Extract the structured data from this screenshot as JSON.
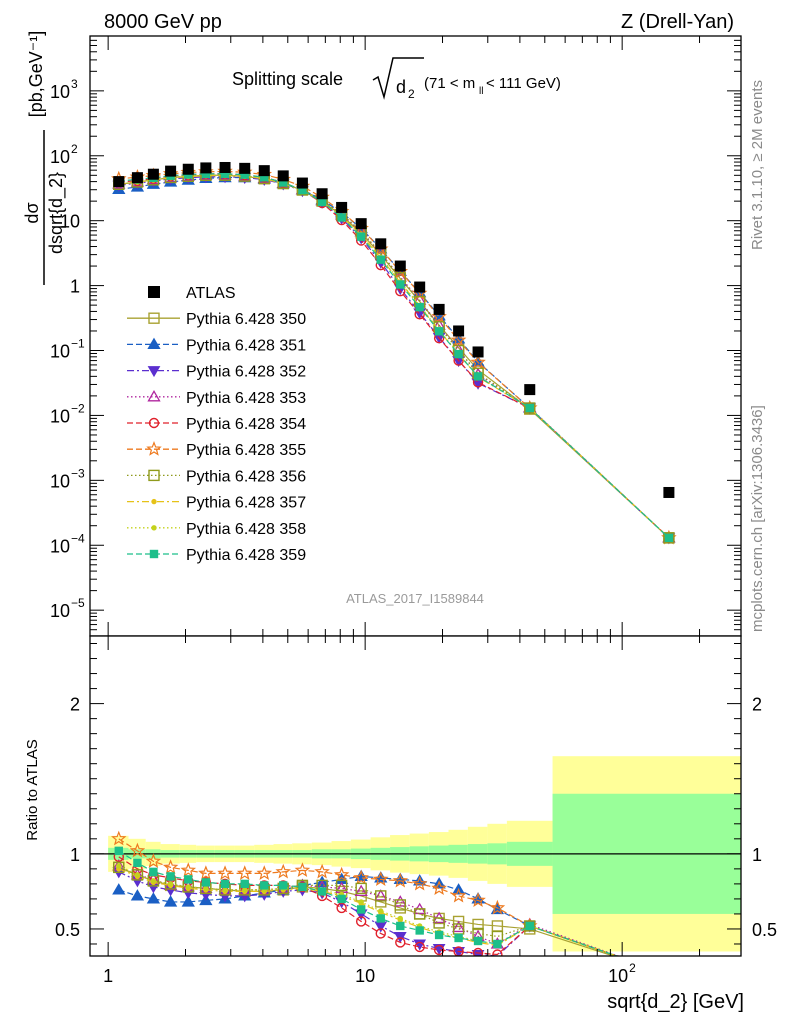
{
  "header": {
    "energy_label": "8000 GeV pp",
    "process_label": "Z (Drell-Yan)"
  },
  "side": {
    "rivet": "Rivet 3.1.10, ≥ 2M events",
    "mcplots": "mcplots.cern.ch [arXiv:1306.3436]"
  },
  "title": {
    "prefix": "Splitting scale",
    "symbol": "d",
    "sub": "2",
    "range": "(71 < m",
    "range_sub": "ll",
    "range_end": " < 111 GeV)"
  },
  "analysis_id": "ATLAS_2017_I1589844",
  "main_ylabel": {
    "num": "dσ",
    "den": "dsqrt{d_2}",
    "unit": "[pb,GeV⁻¹]"
  },
  "ratio_ylabel": "Ratio to ATLAS",
  "xlabel": "sqrt{d_2} [GeV]",
  "colors": {
    "atlas": "#000000",
    "350": "#a9a232",
    "351": "#1a5fc4",
    "352": "#5b2fcf",
    "353": "#b0279f",
    "354": "#e0202b",
    "355": "#ee7a1f",
    "356": "#8f9a1c",
    "357": "#e6c218",
    "358": "#c4d21c",
    "359": "#1cbf8a",
    "band_inner": "#99ff99",
    "band_outer": "#ffff99"
  },
  "chart_data": {
    "type": "scatter",
    "x_scale": "log",
    "y_scale": "log",
    "xlim": [
      0.85,
      290
    ],
    "ylim": [
      4e-06,
      7000
    ],
    "ratio_ylim": [
      0.32,
      2.45
    ],
    "x_ticks": [
      {
        "v": 1,
        "label": "1"
      },
      {
        "v": 10,
        "label": "10"
      },
      {
        "v": 100,
        "label": "10",
        "sup": "2"
      }
    ],
    "y_ticks": [
      {
        "v": 1e-05,
        "base": "10",
        "sup": "−5"
      },
      {
        "v": 0.0001,
        "base": "10",
        "sup": "−4"
      },
      {
        "v": 0.001,
        "base": "10",
        "sup": "−3"
      },
      {
        "v": 0.01,
        "base": "10",
        "sup": "−2"
      },
      {
        "v": 0.1,
        "base": "10",
        "sup": "−1"
      },
      {
        "v": 1,
        "base": "1",
        "sup": ""
      },
      {
        "v": 10,
        "base": "10",
        "sup": ""
      },
      {
        "v": 100,
        "base": "10",
        "sup": "2"
      },
      {
        "v": 1000,
        "base": "10",
        "sup": "3"
      }
    ],
    "ratio_ticks": [
      {
        "v": 0.5,
        "label": "0.5"
      },
      {
        "v": 1,
        "label": "1"
      },
      {
        "v": 2,
        "label": "2"
      }
    ],
    "bin_edges": [
      1.0,
      1.2,
      1.4,
      1.6,
      1.9,
      2.2,
      2.6,
      3.1,
      3.7,
      4.4,
      5.2,
      6.2,
      7.4,
      8.8,
      10.5,
      12.5,
      14.9,
      17.7,
      21.1,
      25.1,
      29.9,
      35.6,
      53.6,
      290.0
    ],
    "x": [
      1.1,
      1.3,
      1.5,
      1.75,
      2.05,
      2.4,
      2.85,
      3.4,
      4.05,
      4.8,
      5.7,
      6.8,
      8.1,
      9.65,
      11.5,
      13.7,
      16.3,
      19.4,
      23.1,
      27.5,
      32.7,
      43.7,
      152
    ],
    "atlas": [
      40,
      46,
      52,
      58,
      62,
      65,
      66,
      64,
      59,
      49,
      38,
      26,
      16,
      9.0,
      4.4,
      2.0,
      0.95,
      0.43,
      0.2,
      0.095,
      0.025,
      0.00065
    ],
    "atlas_x": [
      1.1,
      1.3,
      1.5,
      1.75,
      2.05,
      2.4,
      2.85,
      3.4,
      4.05,
      4.8,
      5.7,
      6.8,
      8.1,
      9.65,
      11.5,
      13.7,
      16.3,
      19.4,
      23.1,
      27.5,
      43.7,
      152
    ],
    "band_inner": [
      0.96,
      0.97,
      0.97,
      0.975,
      0.975,
      0.975,
      0.975,
      0.975,
      0.975,
      0.975,
      0.975,
      0.97,
      0.97,
      0.965,
      0.96,
      0.955,
      0.95,
      0.945,
      0.94,
      0.935,
      0.93,
      0.92,
      0.6
    ],
    "band_outer": [
      0.88,
      0.9,
      0.92,
      0.935,
      0.94,
      0.945,
      0.945,
      0.945,
      0.94,
      0.935,
      0.93,
      0.925,
      0.915,
      0.905,
      0.89,
      0.875,
      0.865,
      0.855,
      0.84,
      0.82,
      0.8,
      0.78,
      0.35
    ],
    "series": [
      {
        "key": "350",
        "name": "Pythia 6.428 350",
        "style": "solid",
        "marker": "square-open",
        "ratio": [
          0.91,
          0.86,
          0.82,
          0.79,
          0.78,
          0.77,
          0.76,
          0.75,
          0.75,
          0.76,
          0.78,
          0.77,
          0.75,
          0.72,
          0.68,
          0.64,
          0.6,
          0.57,
          0.55,
          0.53,
          0.52,
          0.5,
          0.2
        ]
      },
      {
        "key": "351",
        "name": "Pythia 6.428 351",
        "style": "dash",
        "marker": "triangle-up-filled",
        "ratio": [
          0.76,
          0.72,
          0.7,
          0.68,
          0.68,
          0.69,
          0.7,
          0.72,
          0.74,
          0.76,
          0.79,
          0.81,
          0.83,
          0.85,
          0.84,
          0.83,
          0.82,
          0.8,
          0.76,
          0.7,
          0.63,
          0.52,
          0.2
        ]
      },
      {
        "key": "352",
        "name": "Pythia 6.428 352",
        "style": "dashdot",
        "marker": "triangle-down-filled",
        "ratio": [
          0.88,
          0.82,
          0.78,
          0.76,
          0.74,
          0.73,
          0.72,
          0.72,
          0.73,
          0.75,
          0.76,
          0.74,
          0.68,
          0.6,
          0.52,
          0.45,
          0.4,
          0.37,
          0.35,
          0.33,
          0.32,
          0.52,
          0.2
        ]
      },
      {
        "key": "353",
        "name": "Pythia 6.428 353",
        "style": "dot",
        "marker": "triangle-up-open",
        "ratio": [
          0.92,
          0.86,
          0.83,
          0.79,
          0.78,
          0.77,
          0.76,
          0.76,
          0.76,
          0.77,
          0.79,
          0.78,
          0.77,
          0.75,
          0.72,
          0.68,
          0.63,
          0.57,
          0.51,
          0.45,
          0.4,
          0.53,
          0.2
        ]
      },
      {
        "key": "354",
        "name": "Pythia 6.428 354",
        "style": "dash",
        "marker": "circle-open",
        "ratio": [
          0.98,
          0.9,
          0.86,
          0.84,
          0.82,
          0.81,
          0.8,
          0.79,
          0.79,
          0.79,
          0.78,
          0.72,
          0.64,
          0.55,
          0.47,
          0.41,
          0.38,
          0.36,
          0.35,
          0.34,
          0.33,
          0.52,
          0.2
        ]
      },
      {
        "key": "355",
        "name": "Pythia 6.428 355",
        "style": "dash",
        "marker": "star-open",
        "ratio": [
          1.1,
          1.02,
          0.95,
          0.91,
          0.89,
          0.87,
          0.87,
          0.87,
          0.87,
          0.88,
          0.89,
          0.88,
          0.86,
          0.84,
          0.83,
          0.82,
          0.8,
          0.77,
          0.72,
          0.69,
          0.64,
          0.52,
          0.2
        ]
      },
      {
        "key": "356",
        "name": "Pythia 6.428 356",
        "style": "dot",
        "marker": "square-open",
        "ratio": [
          0.91,
          0.86,
          0.82,
          0.8,
          0.78,
          0.77,
          0.76,
          0.76,
          0.76,
          0.77,
          0.79,
          0.79,
          0.79,
          0.77,
          0.72,
          0.66,
          0.6,
          0.54,
          0.5,
          0.47,
          0.45,
          0.52,
          0.2
        ]
      },
      {
        "key": "357",
        "name": "Pythia 6.428 357",
        "style": "dashdot",
        "marker": "dot-filled",
        "ratio": [
          0.9,
          0.85,
          0.81,
          0.79,
          0.77,
          0.76,
          0.75,
          0.75,
          0.75,
          0.76,
          0.77,
          0.75,
          0.72,
          0.67,
          0.61,
          0.56,
          0.51,
          0.47,
          0.44,
          0.41,
          0.39,
          0.52,
          0.2
        ]
      },
      {
        "key": "358",
        "name": "Pythia 6.428 358",
        "style": "dot",
        "marker": "dot-filled",
        "ratio": [
          0.92,
          0.86,
          0.82,
          0.8,
          0.78,
          0.77,
          0.76,
          0.76,
          0.76,
          0.77,
          0.78,
          0.76,
          0.73,
          0.68,
          0.62,
          0.57,
          0.52,
          0.48,
          0.45,
          0.42,
          0.4,
          0.52,
          0.2
        ]
      },
      {
        "key": "359",
        "name": "Pythia 6.428 359",
        "style": "dash",
        "marker": "square-filled",
        "ratio": [
          1.02,
          0.94,
          0.88,
          0.85,
          0.83,
          0.81,
          0.8,
          0.8,
          0.79,
          0.79,
          0.78,
          0.75,
          0.7,
          0.63,
          0.57,
          0.52,
          0.49,
          0.46,
          0.44,
          0.42,
          0.4,
          0.52,
          0.2
        ]
      }
    ],
    "legend": {
      "placement": "center-left",
      "atlas_label": "ATLAS"
    },
    "grid": false
  }
}
